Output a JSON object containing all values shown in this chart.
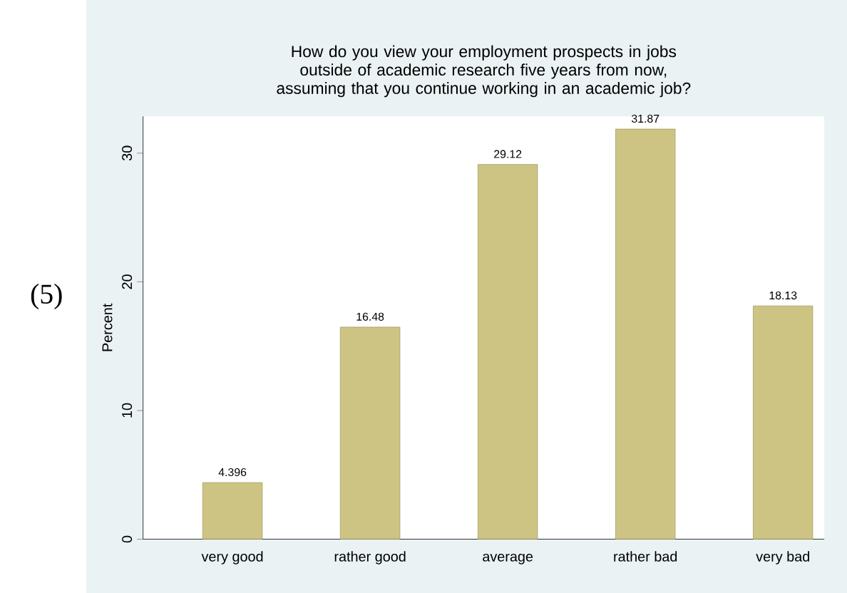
{
  "chart_data": {
    "type": "bar",
    "title": "How do you view your employment prospects in jobs outside of academic research five years from now, assuming that you continue working in an academic job?",
    "ylabel": "Percent",
    "categories": [
      "very good",
      "rather good",
      "average",
      "rather bad",
      "very bad"
    ],
    "values": [
      4.396,
      16.48,
      29.12,
      31.87,
      18.13
    ],
    "color": "#cdc383",
    "ylim": [
      0,
      32.86
    ],
    "yticks": [
      0,
      10,
      20,
      30
    ],
    "data_labels": true,
    "annotations": [
      "(5)"
    ]
  }
}
